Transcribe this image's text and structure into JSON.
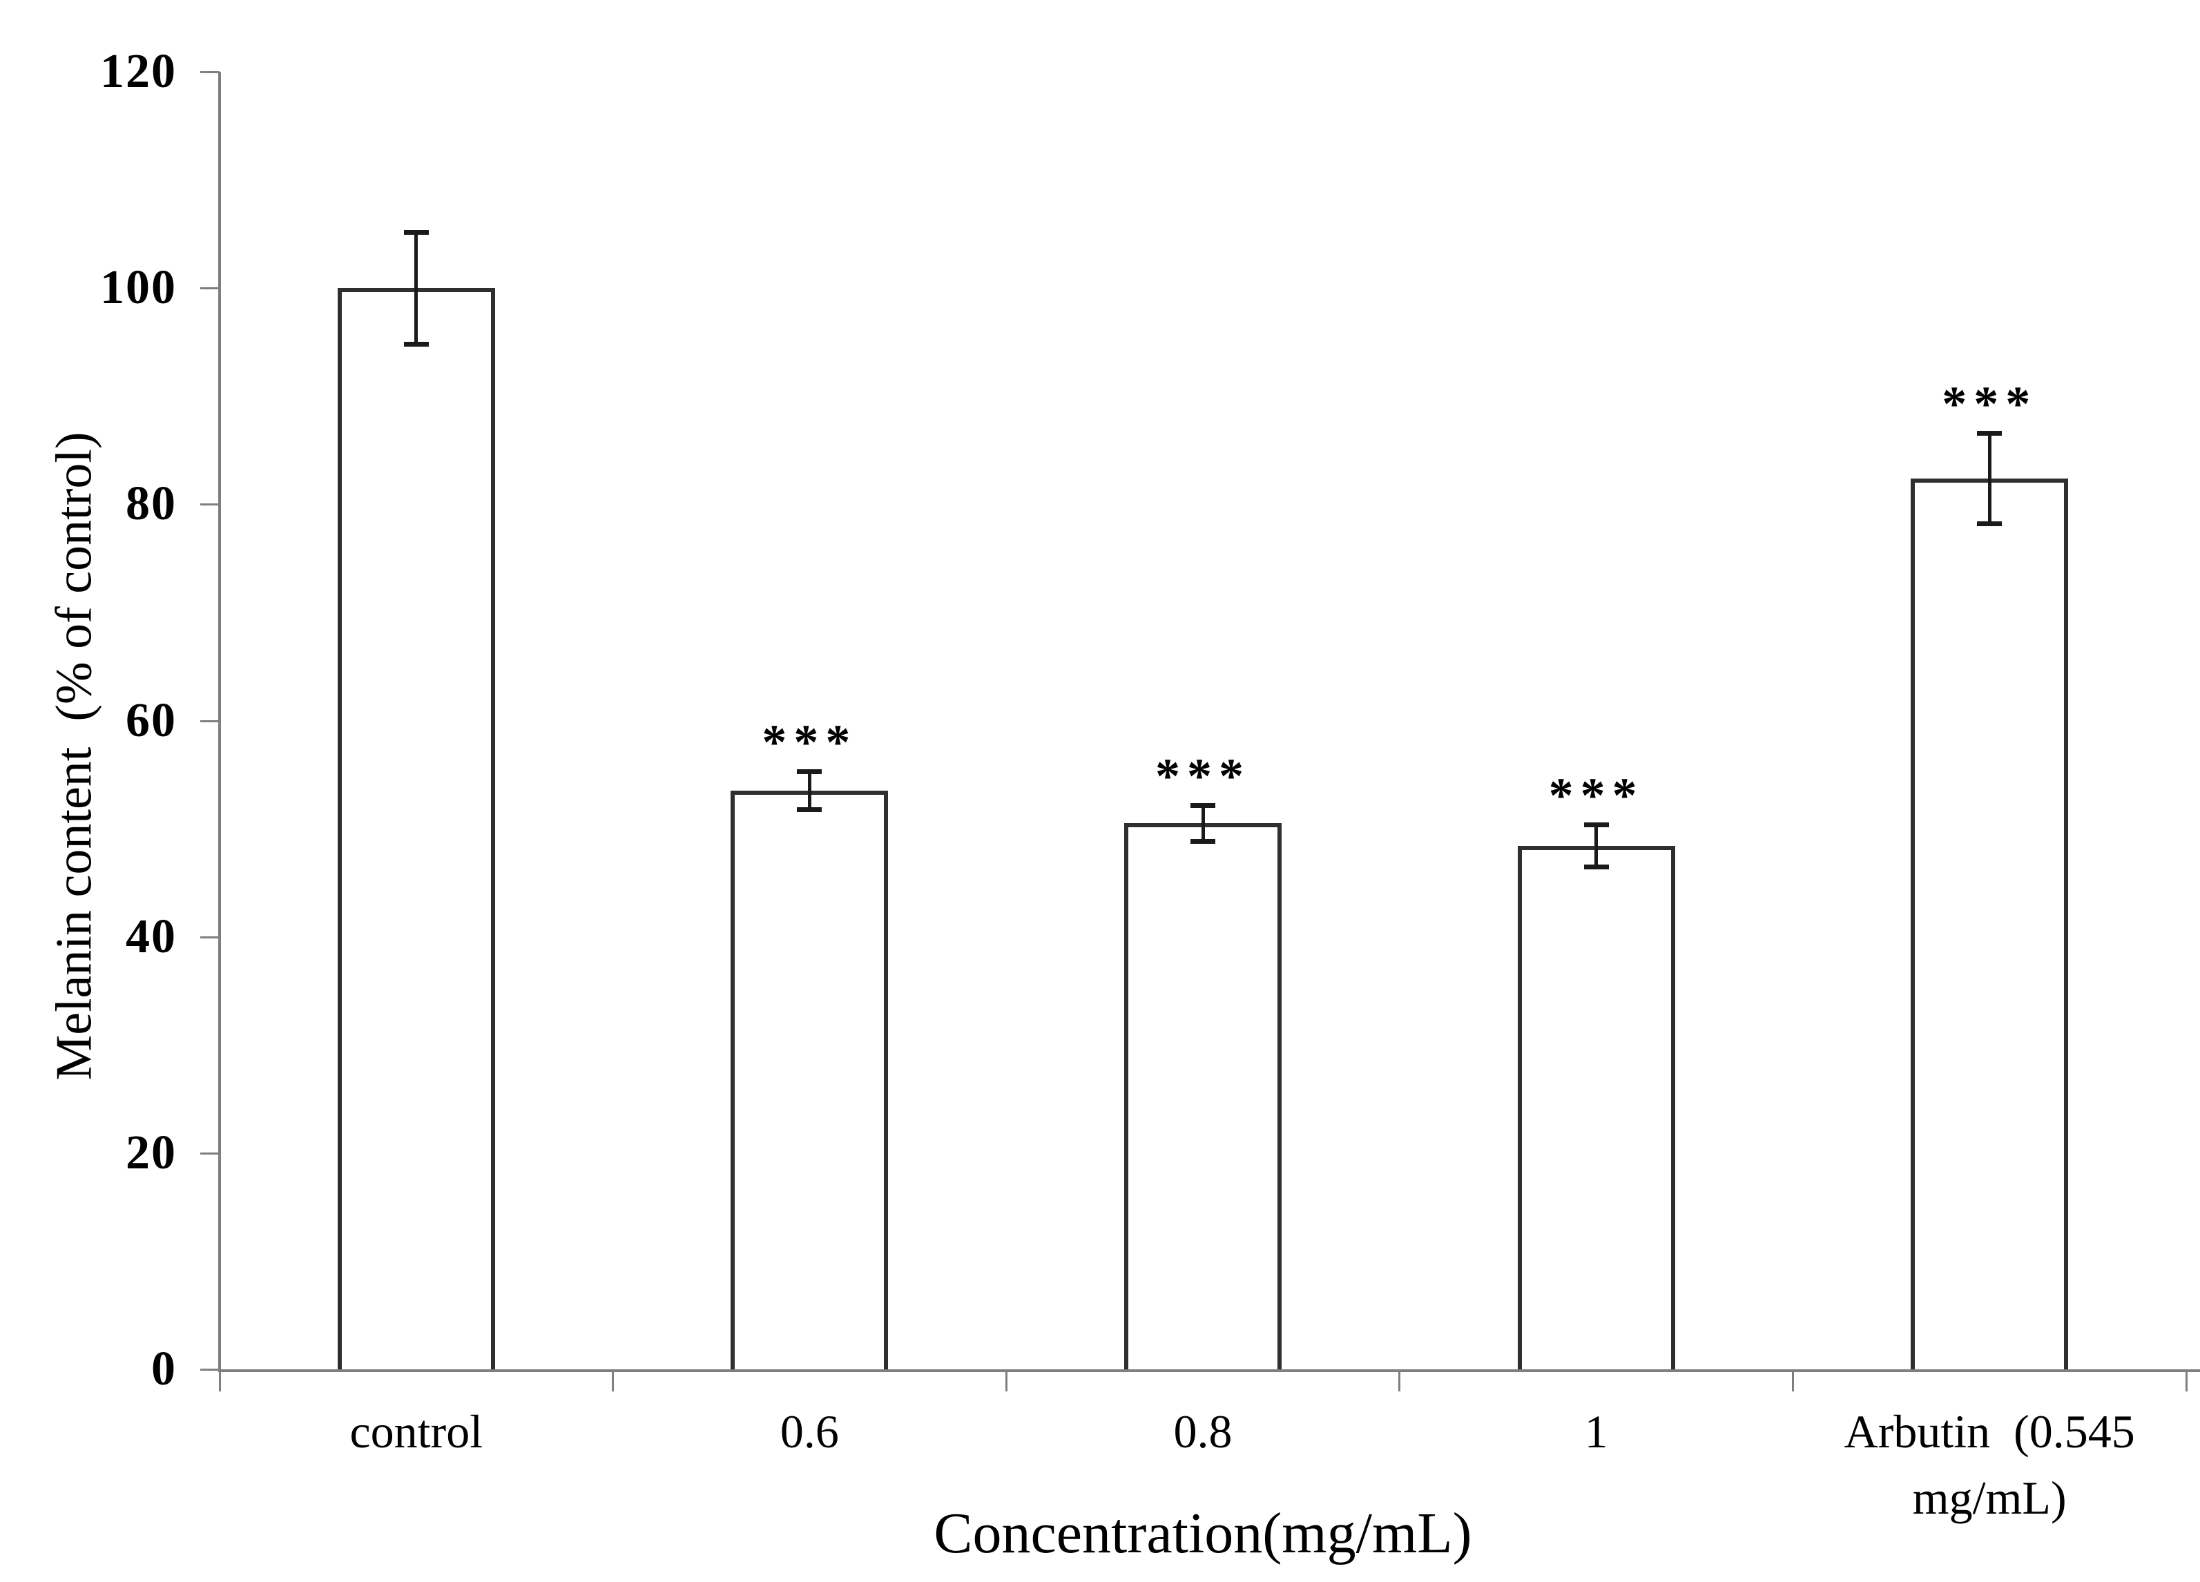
{
  "figure": {
    "background_color": "#ffffff",
    "text_color": "#000000"
  },
  "chart_data": {
    "type": "bar",
    "title": "",
    "categories": [
      "control",
      "0.6",
      "0.8",
      "1",
      "Arbutin  (0.545\nmg/mL)"
    ],
    "values": [
      100,
      53.5,
      50.5,
      48.4,
      82.4
    ],
    "errors": [
      5.2,
      1.8,
      1.7,
      2.0,
      4.2
    ],
    "significance": [
      "",
      "***",
      "***",
      "***",
      "***"
    ],
    "xlabel": "Concentration(mg/mL)",
    "ylabel": "Melanin content  (% of control)",
    "ylim": [
      0,
      120
    ],
    "ytick_step": 20,
    "yticks": [
      0,
      20,
      40,
      60,
      80,
      100,
      120
    ],
    "grid": false,
    "legend": null,
    "bar_fill": "#ffffff",
    "bar_border_color": "#2f2f2f",
    "error_bar_color": "#1a1a1a",
    "axis_color": "#7f7f7f",
    "tick_label_color": "#000000"
  }
}
